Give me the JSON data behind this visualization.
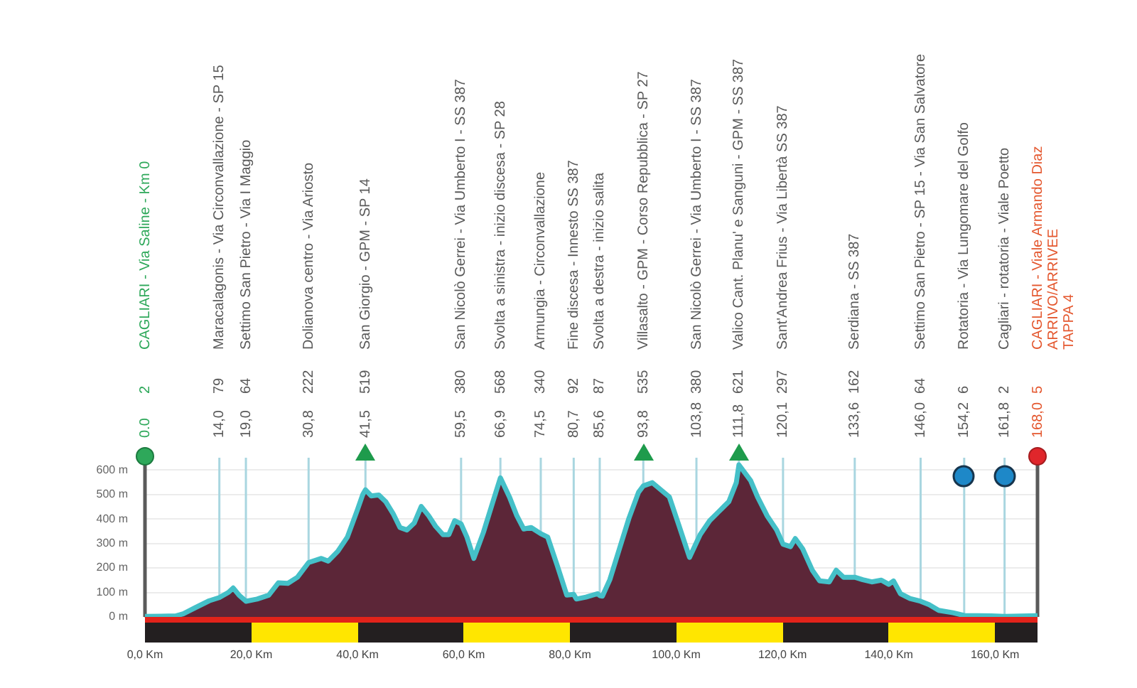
{
  "chart_data": {
    "type": "area",
    "x": [
      0,
      3,
      5.8,
      7.2,
      9.4,
      12.1,
      14.0,
      15.7,
      16.6,
      17.7,
      19.0,
      21.1,
      23.3,
      25.1,
      26.9,
      28.7,
      30.8,
      33.2,
      34.5,
      36.3,
      38.1,
      39.9,
      41.0,
      41.5,
      42.6,
      44.0,
      45.3,
      46.7,
      48.0,
      49.3,
      50.7,
      52.0,
      53.4,
      54.7,
      56.1,
      57.2,
      58.3,
      59.5,
      60.6,
      61.9,
      63.7,
      65.5,
      66.9,
      68.6,
      70.0,
      71.3,
      72.7,
      74.5,
      75.8,
      77.6,
      79.4,
      80.7,
      81.2,
      83.0,
      85.2,
      85.6,
      86.1,
      87.5,
      89.3,
      91.1,
      92.9,
      93.8,
      95.5,
      98.7,
      100.5,
      102.5,
      104.5,
      106.3,
      108.1,
      109.9,
      111.3,
      111.8,
      114.0,
      115.3,
      117.1,
      118.9,
      120.1,
      121.5,
      122.4,
      123.8,
      125.6,
      127.0,
      128.8,
      130.1,
      131.5,
      133.6,
      135.1,
      136.8,
      138.6,
      140.0,
      140.9,
      142.2,
      144.0,
      146.0,
      147.6,
      149.4,
      152.1,
      154.2,
      159.3,
      161.8,
      168.0
    ],
    "values": [
      2,
      3,
      4,
      13,
      37,
      66,
      79,
      100,
      118,
      89,
      64,
      73,
      89,
      139,
      137,
      162,
      222,
      239,
      228,
      268,
      326,
      432,
      500,
      519,
      494,
      498,
      471,
      422,
      365,
      355,
      384,
      451,
      413,
      370,
      336,
      336,
      393,
      380,
      326,
      239,
      345,
      471,
      568,
      490,
      413,
      359,
      365,
      340,
      326,
      210,
      89,
      92,
      73,
      81,
      95,
      87,
      85,
      152,
      278,
      403,
      509,
      535,
      548,
      490,
      374,
      243,
      336,
      393,
      432,
      471,
      548,
      621,
      557,
      490,
      413,
      355,
      297,
      287,
      320,
      278,
      191,
      147,
      143,
      191,
      162,
      162,
      152,
      143,
      150,
      133,
      147,
      95,
      75,
      64,
      50,
      27,
      17,
      6,
      4,
      2,
      5
    ],
    "color": "#5c2638",
    "xlim": [
      0,
      168
    ],
    "xticks": [
      {
        "value": 0,
        "label": "0,0 Km"
      },
      {
        "value": 20,
        "label": "20,0 Km"
      },
      {
        "value": 40,
        "label": "40,0 Km"
      },
      {
        "value": 60,
        "label": "60,0 Km"
      },
      {
        "value": 80,
        "label": "80,0 Km"
      },
      {
        "value": 100,
        "label": "100,0 Km"
      },
      {
        "value": 120,
        "label": "120,0 Km"
      },
      {
        "value": 140,
        "label": "140,0 Km"
      },
      {
        "value": 160,
        "label": "160,0 Km"
      }
    ],
    "ylim": [
      0,
      650
    ],
    "yticks": [
      {
        "value": 0,
        "label": "0 m"
      },
      {
        "value": 100,
        "label": "100 m"
      },
      {
        "value": 200,
        "label": "200 m"
      },
      {
        "value": 300,
        "label": "300 m"
      },
      {
        "value": 400,
        "label": "400 m"
      },
      {
        "value": 500,
        "label": "500 m"
      },
      {
        "value": 600,
        "label": "600 m"
      }
    ],
    "x2lim": [
      0,
      168
    ],
    "x2ticks": [
      {
        "value": 0,
        "label": "0.0"
      },
      {
        "value": 14.0,
        "label": "14,0"
      },
      {
        "value": 19.0,
        "label": "19,0"
      },
      {
        "value": 30.8,
        "label": "30,8"
      },
      {
        "value": 41.5,
        "label": "41,5"
      },
      {
        "value": 59.5,
        "label": "59,5"
      },
      {
        "value": 66.9,
        "label": "66,9"
      },
      {
        "value": 74.5,
        "label": "74,5"
      },
      {
        "value": 80.7,
        "label": "80,7"
      },
      {
        "value": 85.6,
        "label": "85,6"
      },
      {
        "value": 93.8,
        "label": "93,8"
      },
      {
        "value": 103.8,
        "label": "103,8"
      },
      {
        "value": 111.8,
        "label": "111,8"
      },
      {
        "value": 120.1,
        "label": "120,1"
      },
      {
        "value": 133.6,
        "label": "133,6"
      },
      {
        "value": 146.0,
        "label": "146,0"
      },
      {
        "value": 154.2,
        "label": "154,2"
      },
      {
        "value": 161.8,
        "label": "161,8"
      },
      {
        "value": 168.0,
        "label": "168,0"
      }
    ],
    "ref_lines": [
      {
        "axis": "x",
        "value": 0,
        "color": "#5a5a5a"
      },
      {
        "axis": "x",
        "value": 14.0,
        "color": "#a9d6e0"
      },
      {
        "axis": "x",
        "value": 19.0,
        "color": "#a9d6e0"
      },
      {
        "axis": "x",
        "value": 30.8,
        "color": "#a9d6e0"
      },
      {
        "axis": "x",
        "value": 41.5,
        "color": "#a9d6e0"
      },
      {
        "axis": "x",
        "value": 59.5,
        "color": "#a9d6e0"
      },
      {
        "axis": "x",
        "value": 66.9,
        "color": "#a9d6e0"
      },
      {
        "axis": "x",
        "value": 74.5,
        "color": "#a9d6e0"
      },
      {
        "axis": "x",
        "value": 80.7,
        "color": "#a9d6e0"
      },
      {
        "axis": "x",
        "value": 85.6,
        "color": "#a9d6e0"
      },
      {
        "axis": "x",
        "value": 93.8,
        "color": "#a9d6e0"
      },
      {
        "axis": "x",
        "value": 103.8,
        "color": "#a9d6e0"
      },
      {
        "axis": "x",
        "value": 111.8,
        "color": "#a9d6e0"
      },
      {
        "axis": "x",
        "value": 120.1,
        "color": "#a9d6e0"
      },
      {
        "axis": "x",
        "value": 133.6,
        "color": "#a9d6e0"
      },
      {
        "axis": "x",
        "value": 146.0,
        "color": "#a9d6e0"
      },
      {
        "axis": "x",
        "value": 154.2,
        "color": "#a9d6e0"
      },
      {
        "axis": "x",
        "value": 161.8,
        "color": "#a9d6e0"
      },
      {
        "axis": "x",
        "value": 168.0,
        "color": "#5a5a5a"
      }
    ],
    "annotations": [
      "2",
      "CAGLIARI - Via Saline - Km 0",
      "79",
      "Maracalagonis - Via Circonvallazione - SP 15",
      "64",
      "Settimo San Pietro - Via I Maggio",
      "222",
      "Dolianova centro - Via Ariosto",
      "519",
      "San Giorgio - GPM - SP 14",
      "380",
      "San Nicolò Gerrei - Via Umberto I - SS 387",
      "568",
      "Svolta a sinistra - inizio discesa - SP 28",
      "340",
      "Armungia - Circonvallazione",
      "92",
      "Fine discesa - Innesto SS 387",
      "87",
      "Svolta a destra - inizio salita",
      "535",
      "Villasalto - GPM - Corso Repubblica - SP 27",
      "380",
      "San Nicolò Gerrei - Via Umberto I - SS 387",
      "621",
      "Valico Cant. Planu' e Sanguni - GPM - SS 387",
      "297",
      "Sant'Andrea Frius - Via Libertà SS 387",
      "162",
      "Serdiana - SS 387",
      "64",
      "Settimo San Pietro - SP 15 - Via San Salvatore",
      "6",
      "Rotatoria - Via Lungomare del Golfo",
      "2",
      "Cagliari - rotatoria - Viale Poetto",
      "5",
      "CAGLIARI - Viale Armando Diaz\nARRIVO/ARRIVEE\nTAPPA 4"
    ],
    "grid": "y"
  }
}
